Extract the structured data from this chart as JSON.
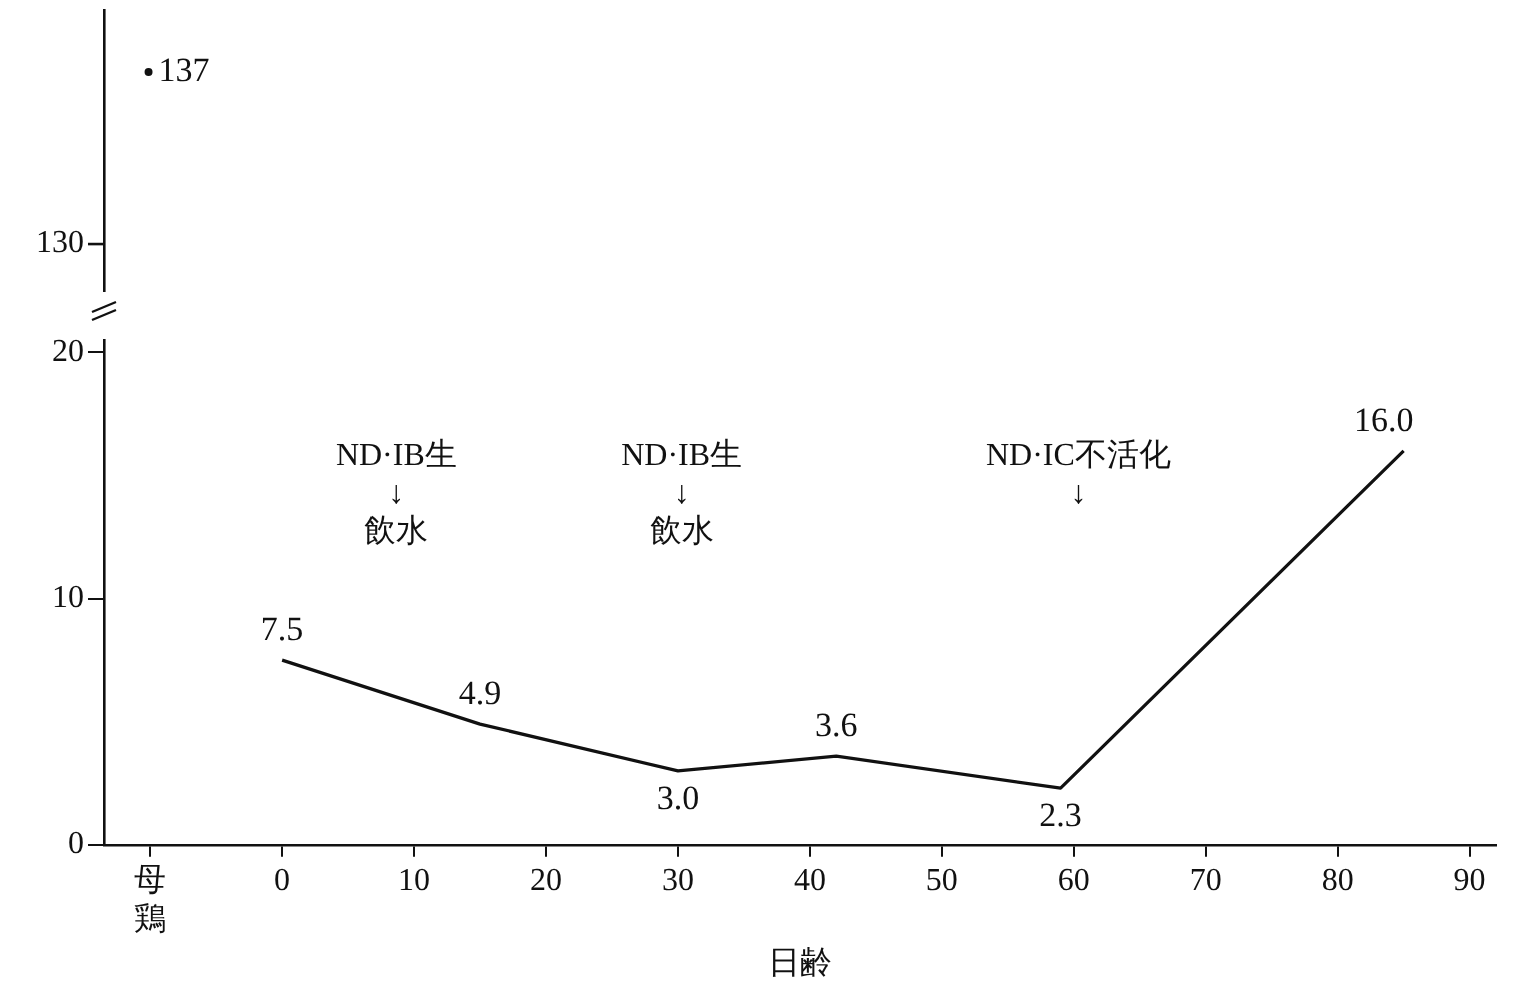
{
  "chart_data": [
    {
      "type": "other",
      "values": [
        137
      ],
      "data_labels": true,
      "color": "#111111",
      "annotations": [
        "130"
      ]
    },
    {
      "type": "line",
      "x": [
        0,
        15,
        30,
        42,
        59,
        85
      ],
      "values": [
        7.5,
        4.9,
        3.0,
        3.6,
        2.3,
        16.0
      ],
      "value_labels": [
        "7.5",
        "4.9",
        "3.0",
        "3.6",
        "2.3",
        "16.0"
      ],
      "color": "#111111",
      "xlabel": "日齢",
      "xlim": [
        -13.5,
        92
      ],
      "xticks": [
        {
          "value": -10,
          "label": "母鶏"
        },
        0,
        10,
        20,
        30,
        40,
        50,
        60,
        70,
        80,
        90
      ],
      "ylim": [
        0,
        20.5
      ],
      "yticks": [
        0,
        10,
        20
      ],
      "grid": false,
      "annotations": [
        "ND·IB生\n↓\n飲水",
        "ND·IB生\n↓\n飲水",
        "ND·IC不活化\n↓"
      ]
    }
  ]
}
